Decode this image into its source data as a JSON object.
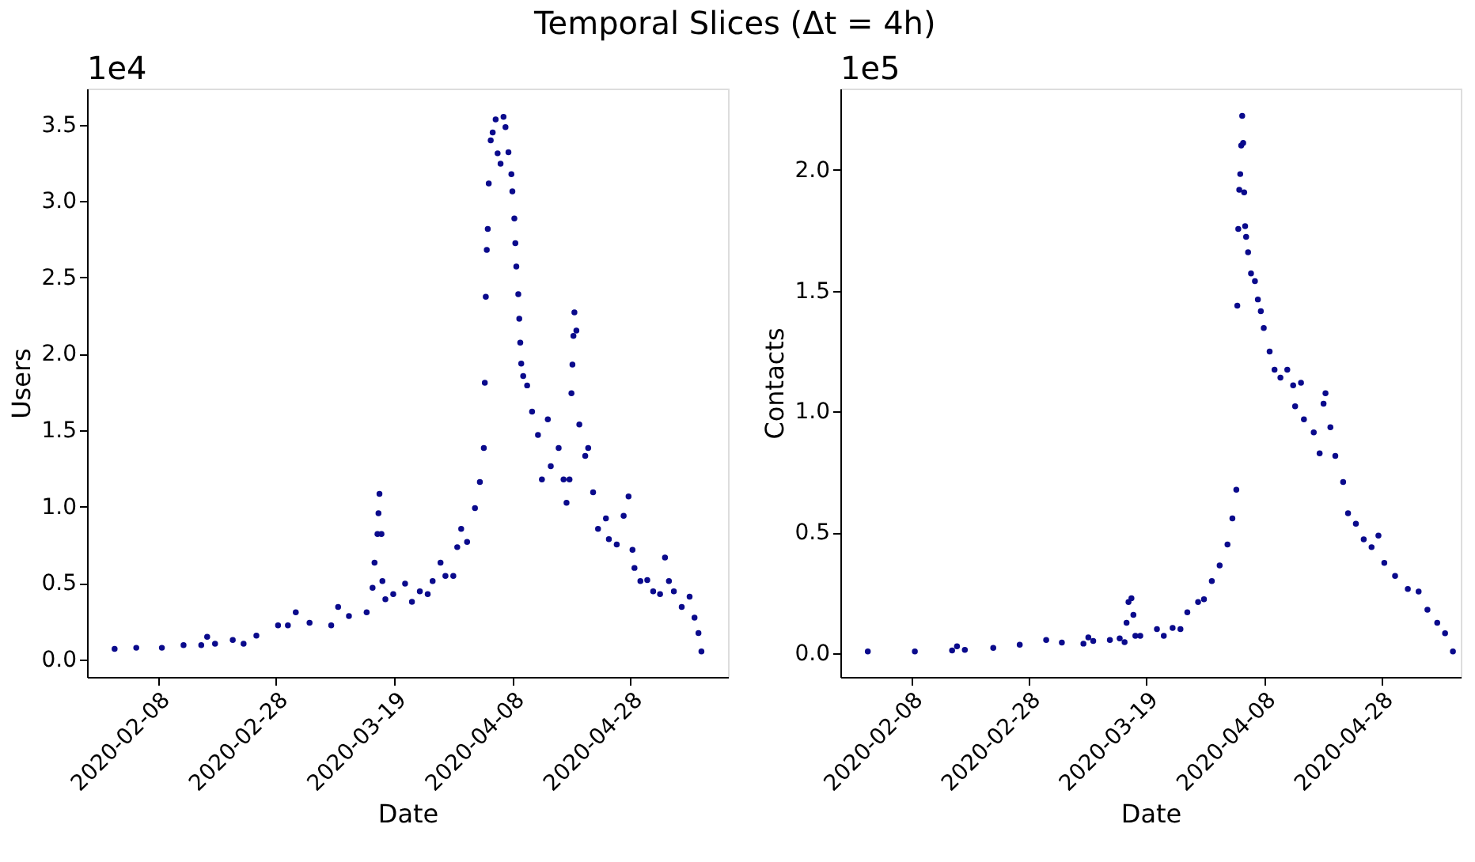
{
  "chart_data": [
    {
      "type": "scatter",
      "title": "Temporal Slices (Δt = 4h)",
      "xlabel": "Date",
      "ylabel": "Users",
      "annotations": [
        "1e4"
      ],
      "marker": "circle",
      "grid": false,
      "xlim": [
        "2020-01-27T00:00",
        "2020-05-14T12:00"
      ],
      "xticks": [
        "2020-02-08",
        "2020-02-28",
        "2020-03-19",
        "2020-04-08",
        "2020-04-28"
      ],
      "ylim": [
        -0.116,
        3.737
      ],
      "yticks": [
        {
          "value": 0,
          "label": "0.0"
        },
        0.5,
        {
          "value": 1,
          "label": "1.0"
        },
        1.5,
        {
          "value": 2,
          "label": "2.0"
        },
        2.5,
        {
          "value": 3,
          "label": "3.0"
        },
        3.5
      ],
      "series": [
        {
          "color": "#0a0a8c",
          "x": [
            "2020-01-31T16:00",
            "2020-02-04T08:00",
            "2020-02-08T16:00",
            "2020-02-12T08:00",
            "2020-02-15T08:00",
            "2020-02-16T08:00",
            "2020-02-17T16:00",
            "2020-02-20T16:00",
            "2020-02-22T12:00",
            "2020-02-24T16:00",
            "2020-02-28T08:00",
            "2020-03-01T00:00",
            "2020-03-02T08:00",
            "2020-03-04T16:00",
            "2020-03-08T08:00",
            "2020-03-09T12:00",
            "2020-03-11T08:00",
            "2020-03-14T08:00",
            "2020-03-15T08:00",
            "2020-03-15T16:00",
            "2020-03-16T04:00",
            "2020-03-16T08:00",
            "2020-03-16T12:00",
            "2020-03-16T20:00",
            "2020-03-17T00:00",
            "2020-03-17T12:00",
            "2020-03-18T20:00",
            "2020-03-20T20:00",
            "2020-03-22T00:00",
            "2020-03-23T08:00",
            "2020-03-24T16:00",
            "2020-03-25T12:00",
            "2020-03-26T20:00",
            "2020-03-27T16:00",
            "2020-03-29T00:00",
            "2020-03-29T16:00",
            "2020-03-30T08:00",
            "2020-03-31T08:00",
            "2020-04-01T16:00",
            "2020-04-02T12:00",
            "2020-04-03T04:00",
            "2020-04-03T08:00",
            "2020-04-03T12:00",
            "2020-04-03T16:00",
            "2020-04-03T20:00",
            "2020-04-04T00:00",
            "2020-04-04T08:00",
            "2020-04-04T16:00",
            "2020-04-05T04:00",
            "2020-04-05T12:00",
            "2020-04-06T00:00",
            "2020-04-06T12:00",
            "2020-04-06T20:00",
            "2020-04-07T08:00",
            "2020-04-07T20:00",
            "2020-04-08T00:00",
            "2020-04-08T08:00",
            "2020-04-08T12:00",
            "2020-04-08T16:00",
            "2020-04-09T00:00",
            "2020-04-09T04:00",
            "2020-04-09T08:00",
            "2020-04-09T12:00",
            "2020-04-09T20:00",
            "2020-04-10T12:00",
            "2020-04-11T08:00",
            "2020-04-12T08:00",
            "2020-04-13T00:00",
            "2020-04-14T00:00",
            "2020-04-14T12:00",
            "2020-04-15T20:00",
            "2020-04-16T16:00",
            "2020-04-17T04:00",
            "2020-04-17T16:00",
            "2020-04-18T00:00",
            "2020-04-18T04:00",
            "2020-04-18T08:00",
            "2020-04-18T12:00",
            "2020-04-18T20:00",
            "2020-04-19T08:00",
            "2020-04-20T08:00",
            "2020-04-20T20:00",
            "2020-04-21T16:00",
            "2020-04-22T12:00",
            "2020-04-23T20:00",
            "2020-04-24T08:00",
            "2020-04-25T16:00",
            "2020-04-26T20:00",
            "2020-04-27T16:00",
            "2020-04-28T08:00",
            "2020-04-28T16:00",
            "2020-04-29T16:00",
            "2020-04-30T20:00",
            "2020-05-01T20:00",
            "2020-05-03T00:00",
            "2020-05-03T20:00",
            "2020-05-04T12:00",
            "2020-05-05T08:00",
            "2020-05-06T16:00",
            "2020-05-08T00:00",
            "2020-05-08T20:00",
            "2020-05-09T12:00",
            "2020-05-10T00:00"
          ],
          "values": [
            0.068,
            0.075,
            0.075,
            0.092,
            0.092,
            0.147,
            0.102,
            0.126,
            0.102,
            0.154,
            0.222,
            0.222,
            0.307,
            0.239,
            0.222,
            0.342,
            0.283,
            0.307,
            0.468,
            0.632,
            0.82,
            0.956,
            1.083,
            0.82,
            0.512,
            0.393,
            0.427,
            0.495,
            0.376,
            0.444,
            0.427,
            0.512,
            0.632,
            0.546,
            0.546,
            0.734,
            0.854,
            0.768,
            0.99,
            1.161,
            1.383,
            1.81,
            2.374,
            2.681,
            2.818,
            3.115,
            3.398,
            3.449,
            3.535,
            3.313,
            3.245,
            3.552,
            3.484,
            3.32,
            3.176,
            3.064,
            2.886,
            2.725,
            2.572,
            2.391,
            2.23,
            2.073,
            1.936,
            1.855,
            1.793,
            1.622,
            1.469,
            1.178,
            1.571,
            1.264,
            1.383,
            1.178,
            1.025,
            1.178,
            1.742,
            1.93,
            2.117,
            2.271,
            2.152,
            1.537,
            1.332,
            1.383,
            1.093,
            0.854,
            0.922,
            0.786,
            0.751,
            0.939,
            1.066,
            0.717,
            0.598,
            0.512,
            0.519,
            0.444,
            0.427,
            0.666,
            0.512,
            0.444,
            0.342,
            0.41,
            0.273,
            0.171,
            0.051
          ]
        }
      ]
    },
    {
      "type": "scatter",
      "xlabel": "Date",
      "ylabel": "Contacts",
      "annotations": [
        "1e5"
      ],
      "marker": "circle",
      "grid": false,
      "xlim": [
        "2020-01-27T00:00",
        "2020-05-11T12:00"
      ],
      "xticks": [
        "2020-02-08",
        "2020-02-28",
        "2020-03-19",
        "2020-04-08",
        "2020-04-28"
      ],
      "ylim": [
        -0.099,
        2.337
      ],
      "yticks": [
        {
          "value": 0,
          "label": "0.0"
        },
        0.5,
        {
          "value": 1,
          "label": "1.0"
        },
        1.5,
        {
          "value": 2,
          "label": "2.0"
        }
      ],
      "series": [
        {
          "color": "#0a0a8c",
          "x": [
            "2020-01-31T16:00",
            "2020-02-08T16:00",
            "2020-02-15T00:00",
            "2020-02-15T20:00",
            "2020-02-17T04:00",
            "2020-02-22T00:00",
            "2020-02-26T12:00",
            "2020-03-02T00:00",
            "2020-03-04T16:00",
            "2020-03-08T08:00",
            "2020-03-09T04:00",
            "2020-03-10T00:00",
            "2020-03-12T20:00",
            "2020-03-14T12:00",
            "2020-03-15T08:00",
            "2020-03-15T16:00",
            "2020-03-16T00:00",
            "2020-03-16T12:00",
            "2020-03-16T20:00",
            "2020-03-17T04:00",
            "2020-03-18T00:00",
            "2020-03-20T20:00",
            "2020-03-22T00:00",
            "2020-03-23T12:00",
            "2020-03-24T20:00",
            "2020-03-26T00:00",
            "2020-03-27T20:00",
            "2020-03-28T20:00",
            "2020-03-30T04:00",
            "2020-03-31T12:00",
            "2020-04-01T20:00",
            "2020-04-02T16:00",
            "2020-04-03T08:00",
            "2020-04-03T12:00",
            "2020-04-03T16:00",
            "2020-04-03T20:00",
            "2020-04-04T00:00",
            "2020-04-04T04:00",
            "2020-04-04T08:00",
            "2020-04-04T12:00",
            "2020-04-04T16:00",
            "2020-04-04T20:00",
            "2020-04-05T00:00",
            "2020-04-05T08:00",
            "2020-04-05T20:00",
            "2020-04-06T12:00",
            "2020-04-07T00:00",
            "2020-04-07T12:00",
            "2020-04-08T00:00",
            "2020-04-09T00:00",
            "2020-04-09T20:00",
            "2020-04-10T20:00",
            "2020-04-12T00:00",
            "2020-04-13T00:00",
            "2020-04-13T08:00",
            "2020-04-14T08:00",
            "2020-04-14T20:00",
            "2020-04-16T12:00",
            "2020-04-17T12:00",
            "2020-04-18T04:00",
            "2020-04-18T12:00",
            "2020-04-19T08:00",
            "2020-04-20T04:00",
            "2020-04-21T12:00",
            "2020-04-22T08:00",
            "2020-04-23T16:00",
            "2020-04-25T00:00",
            "2020-04-26T08:00",
            "2020-04-27T12:00",
            "2020-04-28T12:00",
            "2020-04-30T08:00",
            "2020-05-02T12:00",
            "2020-05-04T08:00",
            "2020-05-05T20:00",
            "2020-05-07T12:00",
            "2020-05-08T20:00",
            "2020-05-10T04:00"
          ],
          "values": [
            0.0065,
            0.0065,
            0.0108,
            0.0281,
            0.013,
            0.0216,
            0.0346,
            0.054,
            0.0432,
            0.0389,
            0.0648,
            0.0497,
            0.054,
            0.0605,
            0.0454,
            0.1253,
            0.2116,
            0.2268,
            0.1577,
            0.0713,
            0.0713,
            0.0993,
            0.0713,
            0.1037,
            0.0993,
            0.1684,
            0.2116,
            0.2224,
            0.298,
            0.3628,
            0.4492,
            0.5572,
            0.6759,
            1.438,
            1.756,
            1.918,
            1.983,
            2.101,
            2.224,
            2.112,
            1.907,
            1.767,
            1.723,
            1.659,
            1.572,
            1.54,
            1.464,
            1.415,
            1.346,
            1.248,
            1.173,
            1.14,
            1.173,
            1.108,
            1.0215,
            1.119,
            0.9675,
            0.9135,
            0.8271,
            1.0323,
            1.0755,
            0.9351,
            0.8163,
            0.7083,
            0.5788,
            0.5356,
            0.4708,
            0.4384,
            0.4859,
            0.3736,
            0.3196,
            0.2656,
            0.2548,
            0.1792,
            0.1253,
            0.0821,
            0.0065
          ]
        }
      ]
    }
  ]
}
